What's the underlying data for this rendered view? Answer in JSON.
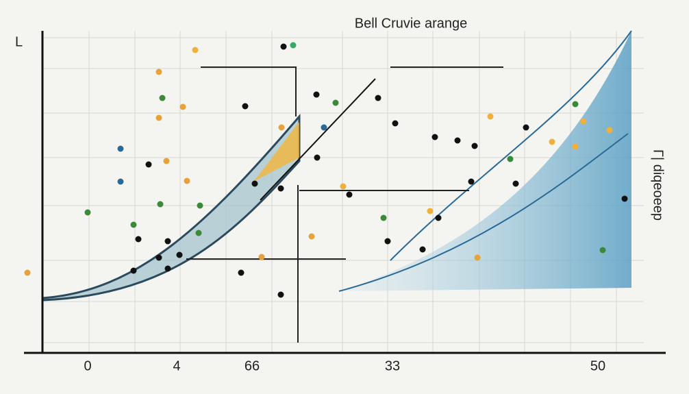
{
  "title": "Bell Cruvie arange",
  "x_labels": [
    "0",
    "4",
    "66",
    "33",
    "50"
  ],
  "corner_label": "L",
  "right_label": "Γ| diqeoeep"
}
